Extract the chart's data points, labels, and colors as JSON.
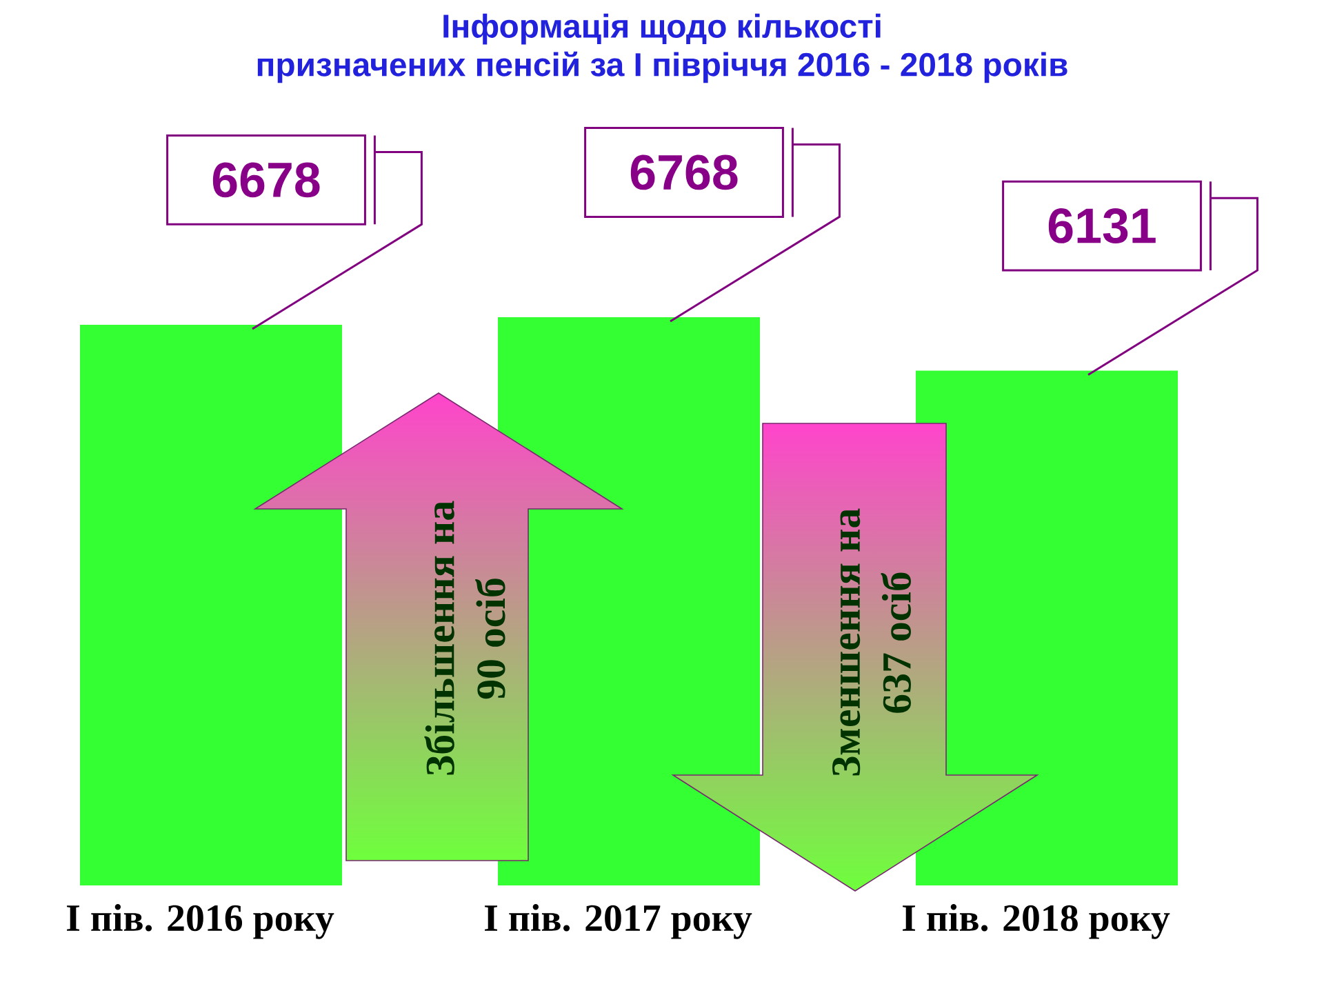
{
  "chart_data": {
    "type": "bar",
    "title": "Інформація щодо кількості призначених пенсій за І півріччя 2016 - 2018 років",
    "categories": [
      "І пів. 2016 року",
      "І пів. 2017 року",
      "І пів. 2018 року"
    ],
    "values": [
      6678,
      6768,
      6131
    ],
    "color": "#33ff33",
    "data_labels": true,
    "annotations": [
      "Збільшення на 90 осіб",
      "Зменшення на 637 осіб"
    ]
  }
}
